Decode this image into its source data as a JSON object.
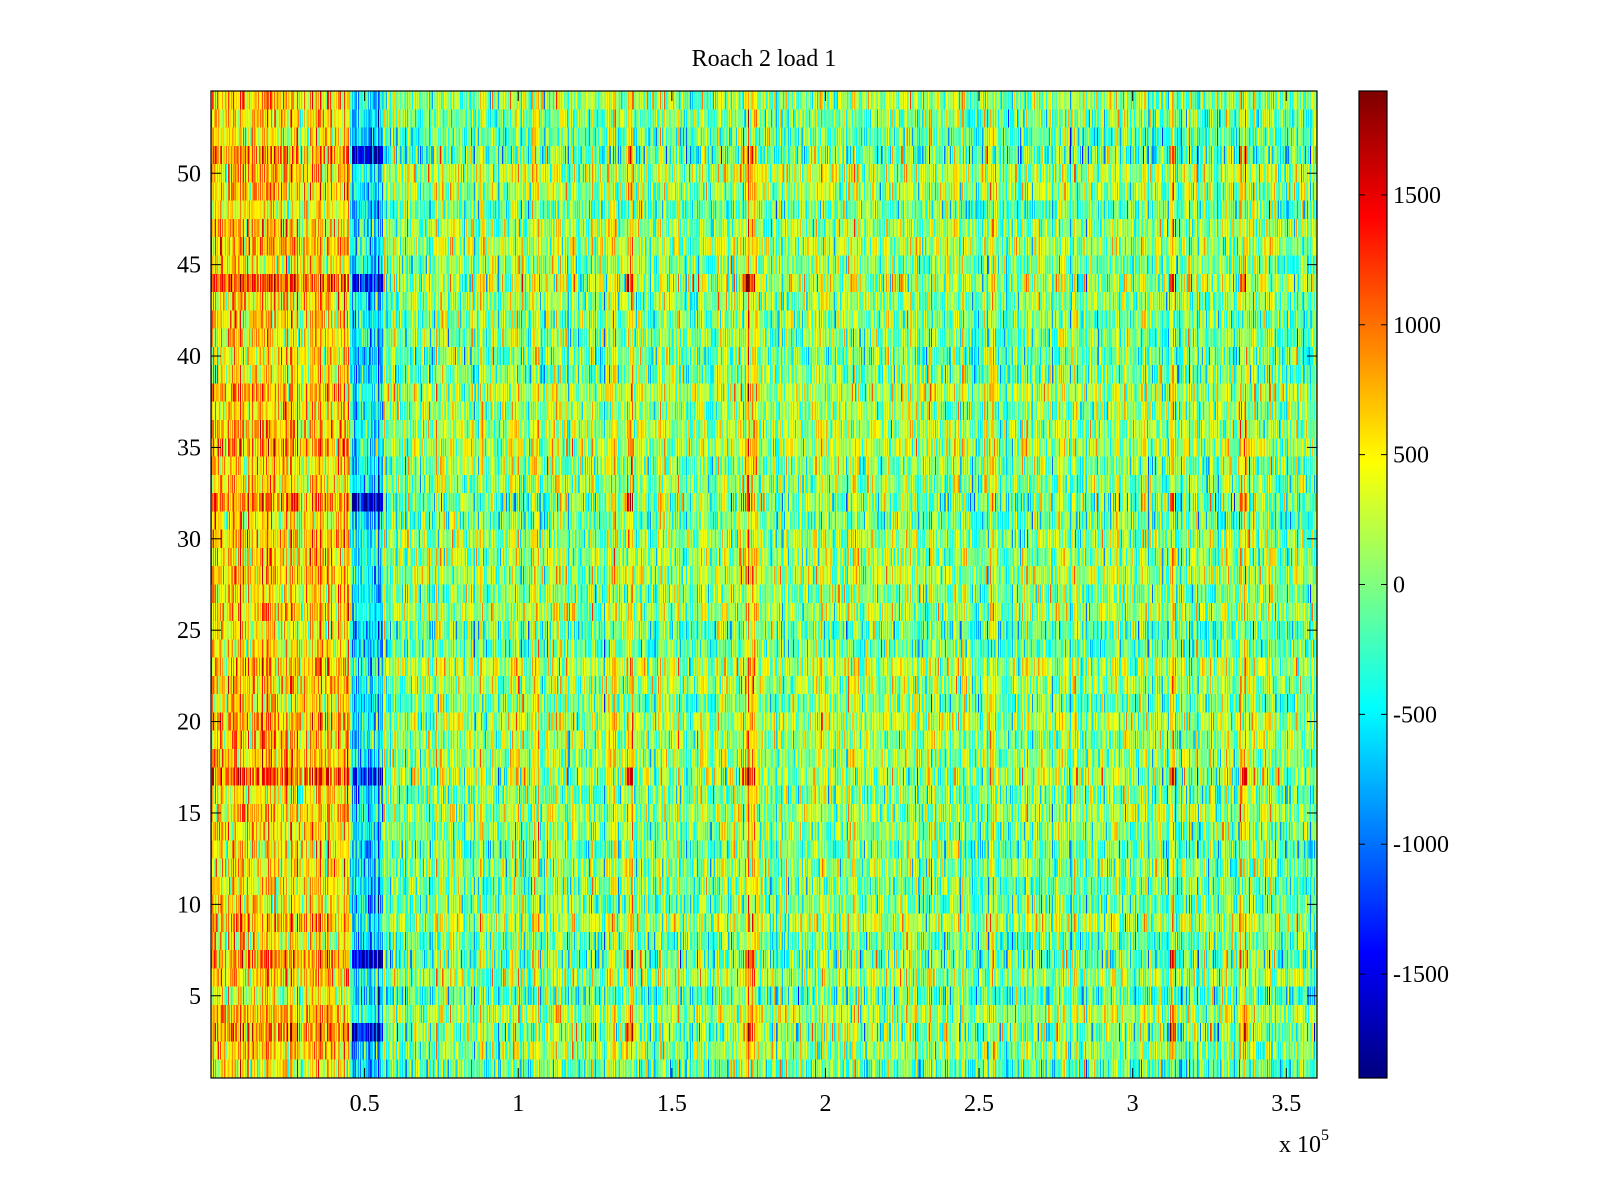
{
  "chart_data": {
    "type": "heatmap",
    "title": "Roach 2 load 1",
    "xlabel": "",
    "ylabel": "",
    "x_exponent_label": "x 10",
    "x_exponent_power": "5",
    "xlim": [
      0,
      3.6
    ],
    "ylim": [
      0.5,
      54.5
    ],
    "rows": 54,
    "x_ticks": [
      {
        "value": 0.5,
        "label": "0.5"
      },
      {
        "value": 1,
        "label": "1"
      },
      {
        "value": 1.5,
        "label": "1.5"
      },
      {
        "value": 2,
        "label": "2"
      },
      {
        "value": 2.5,
        "label": "2.5"
      },
      {
        "value": 3,
        "label": "3"
      },
      {
        "value": 3.5,
        "label": "3.5"
      }
    ],
    "y_ticks": [
      {
        "value": 5,
        "label": "5"
      },
      {
        "value": 10,
        "label": "10"
      },
      {
        "value": 15,
        "label": "15"
      },
      {
        "value": 20,
        "label": "20"
      },
      {
        "value": 25,
        "label": "25"
      },
      {
        "value": 30,
        "label": "30"
      },
      {
        "value": 35,
        "label": "35"
      },
      {
        "value": 40,
        "label": "40"
      },
      {
        "value": 45,
        "label": "45"
      },
      {
        "value": 50,
        "label": "50"
      }
    ],
    "colorbar": {
      "colormap": "jet",
      "clim": [
        -1900,
        1900
      ],
      "ticks": [
        {
          "value": 1500,
          "label": "1500"
        },
        {
          "value": 1000,
          "label": "1000"
        },
        {
          "value": 500,
          "label": "500"
        },
        {
          "value": 0,
          "label": "0"
        },
        {
          "value": -500,
          "label": "-500"
        },
        {
          "value": -1000,
          "label": "-1000"
        },
        {
          "value": -1500,
          "label": "-1500"
        }
      ]
    },
    "features": {
      "early_segment": {
        "x_range": [
          0,
          0.45
        ],
        "mean_value": 600
      },
      "blue_band": {
        "x_range": [
          0.46,
          0.56
        ],
        "mean_value": -600,
        "strong_rows": [
          3,
          7,
          17,
          32,
          44,
          51
        ]
      },
      "hot_columns": [
        1.36,
        1.74,
        1.76,
        3.13,
        3.36
      ]
    }
  }
}
